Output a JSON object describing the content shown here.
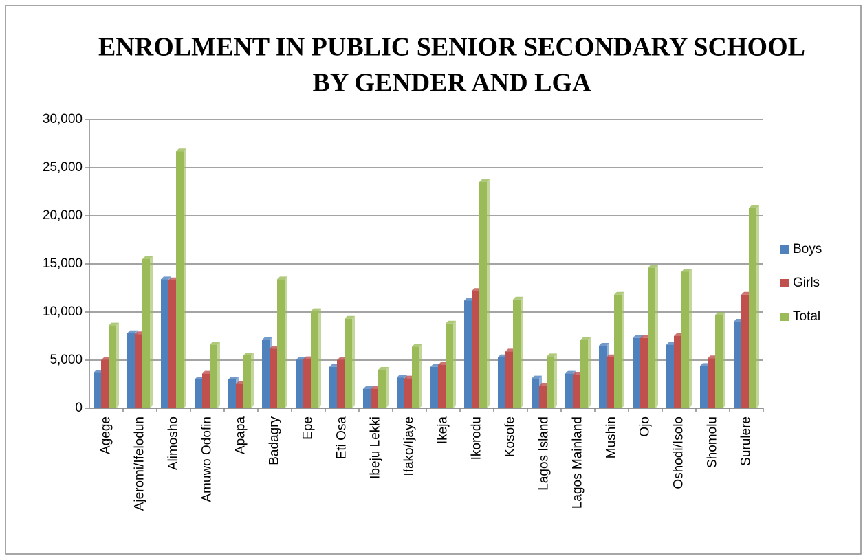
{
  "chart_data": {
    "type": "bar",
    "title": [
      "ENROLMENT IN PUBLIC SENIOR SECONDARY SCHOOL",
      "BY GENDER AND LGA"
    ],
    "categories": [
      "Agege",
      "Ajeromi/Ifelodun",
      "Alimosho",
      "Amuwo Odofin",
      "Apapa",
      "Badagry",
      "Epe",
      "Eti Osa",
      "Ibeju Lekki",
      "Ifako/Ijaye",
      "Ikeja",
      "Ikorodu",
      "Kosofe",
      "Lagos Island",
      "Lagos Mainland",
      "Mushin",
      "Ojo",
      "Oshodi/Isolo",
      "Shomolu",
      "Surulere"
    ],
    "series": [
      {
        "name": "Boys",
        "color": "#4f81bd",
        "values": [
          3700,
          7800,
          13400,
          3000,
          3000,
          7100,
          5000,
          4300,
          2000,
          3200,
          4300,
          11200,
          5300,
          3100,
          3600,
          6500,
          7300,
          6600,
          4400,
          9000
        ]
      },
      {
        "name": "Girls",
        "color": "#c0504d",
        "values": [
          5000,
          7700,
          13300,
          3600,
          2500,
          6200,
          5100,
          5000,
          2000,
          3100,
          4500,
          12200,
          5900,
          2300,
          3500,
          5300,
          7300,
          7500,
          5200,
          11800
        ]
      },
      {
        "name": "Total",
        "color": "#9bbb59",
        "values": [
          8600,
          15500,
          26700,
          6600,
          5500,
          13400,
          10100,
          9300,
          4000,
          6400,
          8800,
          23500,
          11300,
          5400,
          7100,
          11800,
          14600,
          14200,
          9700,
          20800
        ]
      }
    ],
    "ylim": [
      0,
      30000
    ],
    "yticks": [
      0,
      {
        "value": 5000,
        "label": "5,000"
      },
      {
        "value": 10000,
        "label": "10,000"
      },
      {
        "value": 15000,
        "label": "15,000"
      },
      {
        "value": 20000,
        "label": "20,000"
      },
      {
        "value": 25000,
        "label": "25,000"
      },
      {
        "value": 30000,
        "label": "30,000"
      }
    ],
    "grid": true,
    "legend": "right"
  }
}
